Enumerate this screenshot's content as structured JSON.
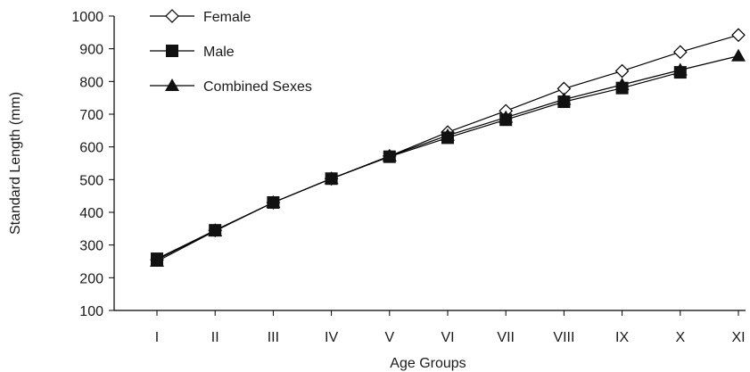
{
  "chart_data": {
    "type": "line",
    "categories": [
      "I",
      "II",
      "III",
      "IV",
      "V",
      "VI",
      "VII",
      "VIII",
      "IX",
      "X",
      "XI"
    ],
    "series": [
      {
        "name": "Female",
        "marker": "open-diamond",
        "color": "#000000",
        "values": [
          255,
          345,
          430,
          503,
          572,
          645,
          710,
          778,
          832,
          890,
          942
        ]
      },
      {
        "name": "Male",
        "marker": "filled-square",
        "color": "#000000",
        "values": [
          258,
          345,
          430,
          503,
          570,
          628,
          683,
          738,
          780,
          828,
          null
        ]
      },
      {
        "name": "Combined Sexes",
        "marker": "filled-triangle",
        "color": "#000000",
        "values": [
          250,
          343,
          430,
          503,
          572,
          635,
          690,
          745,
          790,
          835,
          878
        ]
      }
    ],
    "xlabel": "Age Groups",
    "ylabel": "Standard Length (mm)",
    "ylim": [
      100,
      1000
    ],
    "yticks": [
      100,
      200,
      300,
      400,
      500,
      600,
      700,
      800,
      900,
      1000
    ],
    "grid": false,
    "legend_position": "top-left"
  }
}
